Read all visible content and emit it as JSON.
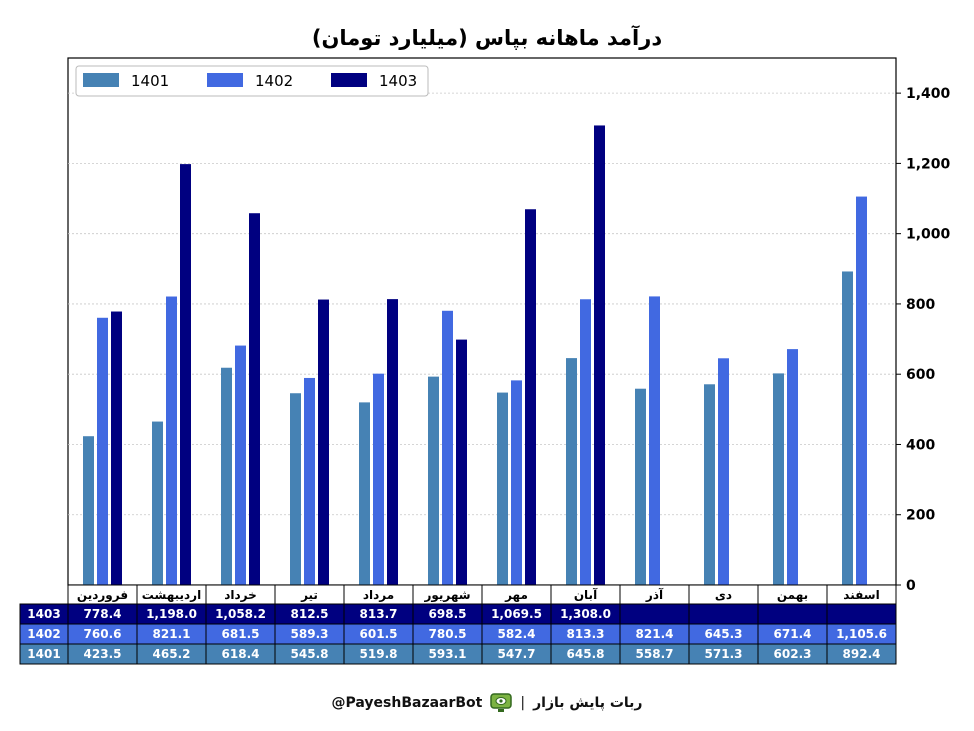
{
  "title": "درآمد ماهانه بپاس (میلیارد تومان)",
  "footer": {
    "handle": "@PayeshBazaarBot",
    "separator": "|",
    "bot_name": "ربات پایش بازار"
  },
  "colors": {
    "1401": "#4682b4",
    "1402": "#4169e1",
    "1403": "#000080"
  },
  "chart_data": {
    "type": "bar",
    "title": "درآمد ماهانه بپاس (میلیارد تومان)",
    "categories": [
      "فروردین",
      "اردیبهشت",
      "خرداد",
      "تیر",
      "مرداد",
      "شهریور",
      "مهر",
      "آبان",
      "آذر",
      "دی",
      "بهمن",
      "اسفند"
    ],
    "series": [
      {
        "name": "1401",
        "values": [
          423.5,
          465.2,
          618.4,
          545.8,
          519.8,
          593.1,
          547.7,
          645.8,
          558.7,
          571.3,
          602.3,
          892.4
        ]
      },
      {
        "name": "1402",
        "values": [
          760.6,
          821.1,
          681.5,
          589.3,
          601.5,
          780.5,
          582.4,
          813.3,
          821.4,
          645.3,
          671.4,
          1105.6
        ]
      },
      {
        "name": "1403",
        "values": [
          778.4,
          1198.0,
          1058.2,
          812.5,
          813.7,
          698.5,
          1069.5,
          1308.0,
          null,
          null,
          null,
          null
        ]
      }
    ],
    "table_rows": [
      {
        "name": "1403",
        "cells": [
          "778.4",
          "1,198.0",
          "1,058.2",
          "812.5",
          "813.7",
          "698.5",
          "1,069.5",
          "1,308.0",
          "",
          "",
          "",
          ""
        ]
      },
      {
        "name": "1402",
        "cells": [
          "760.6",
          "821.1",
          "681.5",
          "589.3",
          "601.5",
          "780.5",
          "582.4",
          "813.3",
          "821.4",
          "645.3",
          "671.4",
          "1,105.6"
        ]
      },
      {
        "name": "1401",
        "cells": [
          "423.5",
          "465.2",
          "618.4",
          "545.8",
          "519.8",
          "593.1",
          "547.7",
          "645.8",
          "558.7",
          "571.3",
          "602.3",
          "892.4"
        ]
      }
    ],
    "ylim": [
      0,
      1500
    ],
    "yticks": [
      0,
      200,
      400,
      600,
      800,
      1000,
      1200,
      1400
    ],
    "ytick_labels": [
      "0",
      "200",
      "400",
      "600",
      "800",
      "1,000",
      "1,200",
      "1,400"
    ],
    "y_axis_side": "right",
    "grid": true,
    "legend": {
      "position": "top-left",
      "entries": [
        "1401",
        "1402",
        "1403"
      ]
    },
    "xlabel": "",
    "ylabel": ""
  }
}
